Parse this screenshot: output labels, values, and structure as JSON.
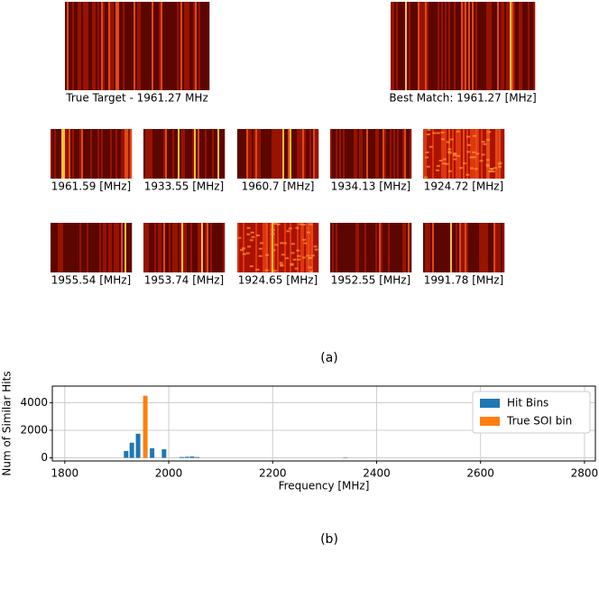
{
  "panel_a": {
    "target_label": "True Target - 1961.27 MHz",
    "best_match_label": "Best Match: 1961.27 [MHz]",
    "matches": [
      "1961.59 [MHz]",
      "1933.55 [MHz]",
      "1960.7 [MHz]",
      "1934.13 [MHz]",
      "1924.72 [MHz]",
      "1955.54 [MHz]",
      "1953.74 [MHz]",
      "1924.65 [MHz]",
      "1952.55 [MHz]",
      "1991.78 [MHz]"
    ],
    "caption": "(a)"
  },
  "chart_data": {
    "type": "bar",
    "xlabel": "Frequency [MHz]",
    "ylabel": "Num of Similar Hits",
    "series": [
      {
        "name": "Hit Bins",
        "color": "#1f77b4",
        "x": [
          1918,
          1929,
          1941,
          1968,
          1991,
          2025,
          2035,
          2045,
          2055,
          2340
        ],
        "values": [
          500,
          1100,
          1750,
          700,
          620,
          60,
          80,
          100,
          60,
          20
        ]
      },
      {
        "name": "True SOI bin",
        "color": "#ff7f0e",
        "x": [
          1955
        ],
        "values": [
          4500
        ]
      }
    ],
    "xlim": [
      1776,
      2821
    ],
    "xticks": [
      1800,
      2000,
      2200,
      2400,
      2600,
      2800
    ],
    "ylim": [
      -225,
      5200
    ],
    "yticks": [
      0,
      2000,
      4000
    ],
    "grid": true,
    "legend": "upper right"
  },
  "caption_b": "(b)"
}
